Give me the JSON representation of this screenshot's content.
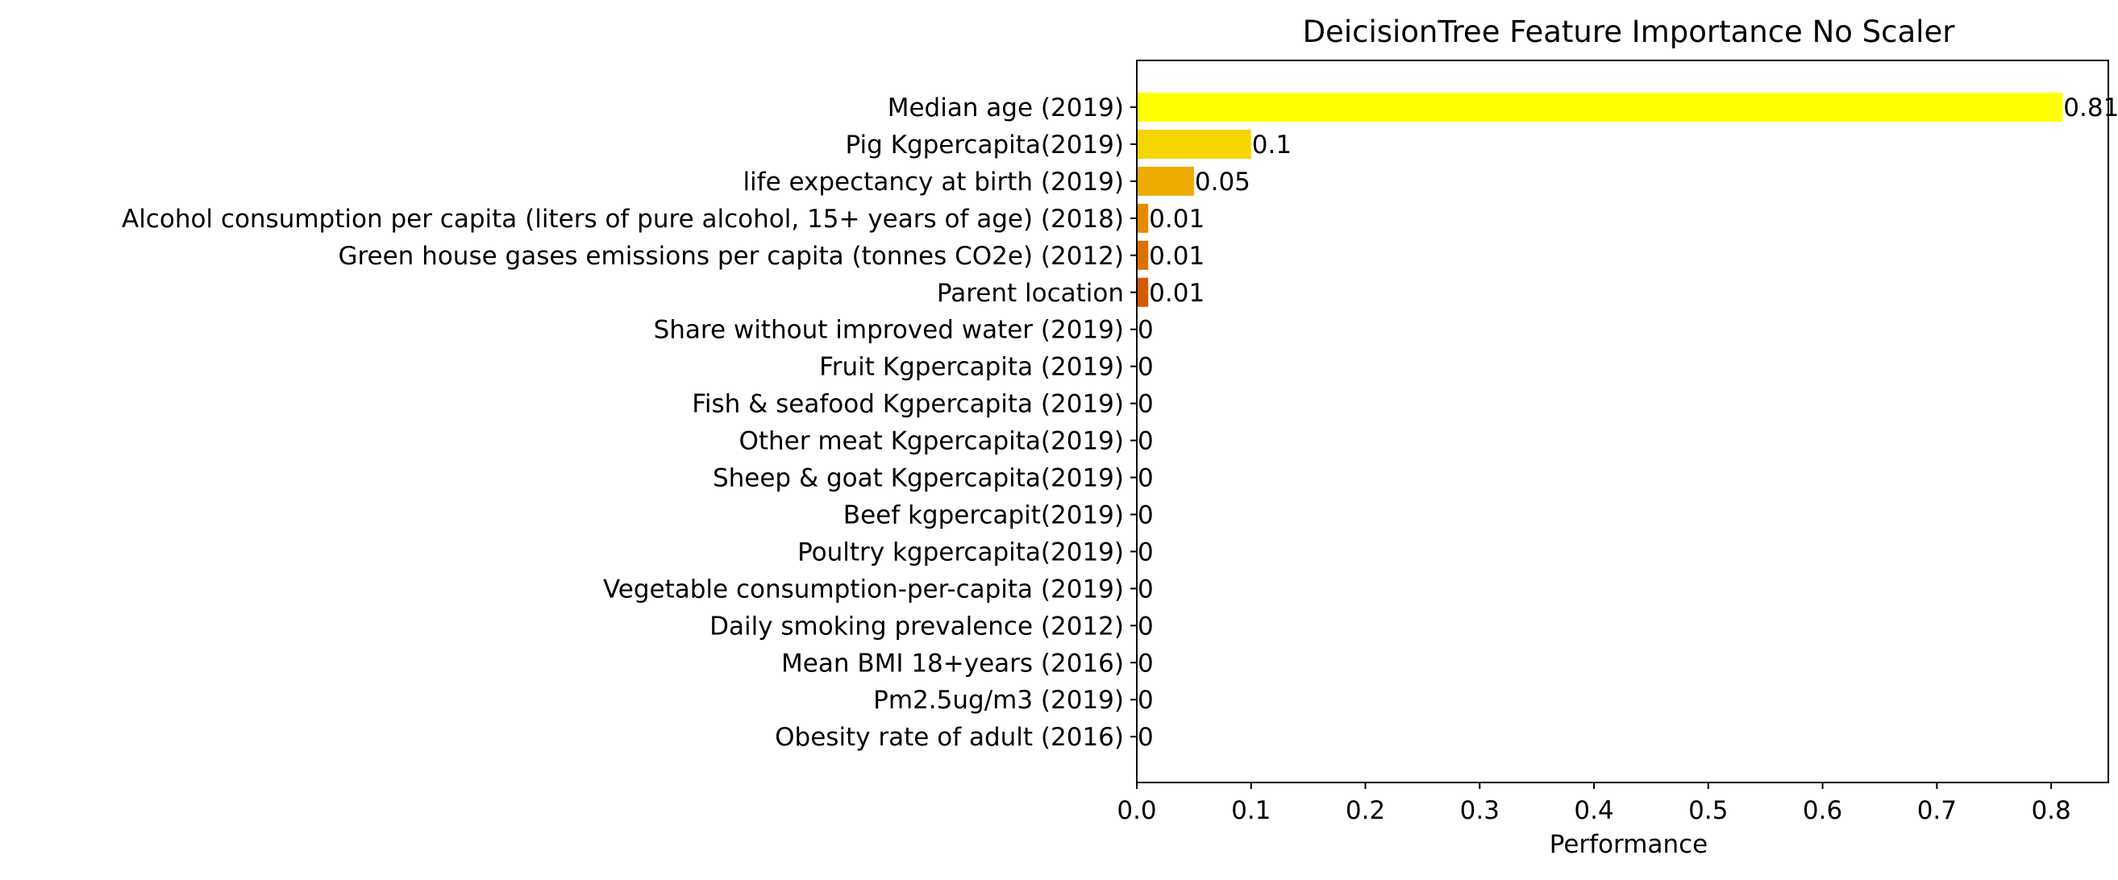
{
  "chart_data": {
    "type": "bar",
    "orientation": "horizontal",
    "title": "DeicisionTree Feature Importance No Scaler",
    "xlabel": "Performance",
    "ylabel": "",
    "xlim": [
      0,
      0.85
    ],
    "xticks": [
      0.0,
      0.1,
      0.2,
      0.3,
      0.4,
      0.5,
      0.6,
      0.7,
      0.8
    ],
    "xtick_labels": [
      "0.0",
      "0.1",
      "0.2",
      "0.3",
      "0.4",
      "0.5",
      "0.6",
      "0.7",
      "0.8"
    ],
    "grid": false,
    "categories": [
      "Median age (2019)",
      "Pig Kgpercapita(2019)",
      "life expectancy at birth (2019)",
      "Alcohol consumption per capita (liters of pure alcohol, 15+ years of age) (2018) ",
      "Green house gases emissions per capita (tonnes CO2e) (2012)",
      "Parent location",
      "Share without improved water (2019)",
      "Fruit Kgpercapita (2019)",
      "Fish & seafood Kgpercapita (2019)",
      "Other meat Kgpercapita(2019)",
      "Sheep & goat Kgpercapita(2019)",
      "Beef kgpercapit(2019)",
      "Poultry kgpercapita(2019)",
      "Vegetable consumption-per-capita (2019)",
      "Daily smoking prevalence (2012)",
      "Mean BMI 18+years (2016)",
      "Pm2.5ug/m3 (2019)",
      "Obesity rate of adult (2016)"
    ],
    "values": [
      0.81,
      0.1,
      0.05,
      0.01,
      0.01,
      0.01,
      0,
      0,
      0,
      0,
      0,
      0,
      0,
      0,
      0,
      0,
      0,
      0
    ],
    "data_labels": [
      "0.81",
      "0.1",
      "0.05",
      "0.01",
      "0.01",
      "0.01",
      "0",
      "0",
      "0",
      "0",
      "0",
      "0",
      "0",
      "0",
      "0",
      "0",
      "0",
      "0"
    ],
    "bar_colors": [
      "#ffff00",
      "#f6d500",
      "#eeab00",
      "#e58b00",
      "#dc7200",
      "#d35a00",
      "#ca4300",
      "#c23000",
      "#b91f00",
      "#b01300",
      "#a70600",
      "#9f0000",
      "#960000",
      "#8e0000",
      "#850000",
      "#7d0000",
      "#740000",
      "#6c0000"
    ]
  }
}
